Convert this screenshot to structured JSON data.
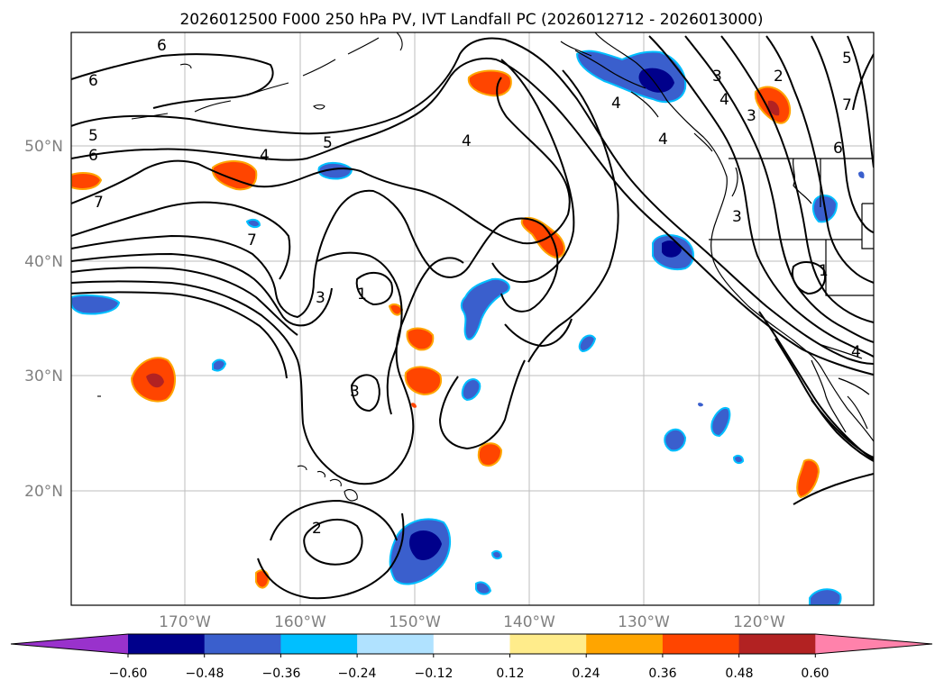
{
  "title": "2026012500 F000 250 hPa PV, IVT Landfall PC (2026012712 - 2026013000)",
  "map": {
    "lon_ticks": [
      "170°W",
      "160°W",
      "150°W",
      "140°W",
      "130°W",
      "120°W"
    ],
    "lat_ticks": [
      "50°N",
      "40°N",
      "30°N",
      "20°N"
    ],
    "contour_labels": [
      "6",
      "6",
      "5",
      "6",
      "5",
      "4",
      "4",
      "7",
      "7",
      "3",
      "1",
      "3",
      "2",
      "4",
      "2",
      "3",
      "3",
      "4",
      "7",
      "6",
      "5",
      "4",
      "3",
      "1",
      "4"
    ]
  },
  "colorbar": {
    "ticks": [
      "−0.60",
      "−0.48",
      "−0.36",
      "−0.24",
      "−0.12",
      "0.12",
      "0.24",
      "0.36",
      "0.48",
      "0.60"
    ],
    "colors": [
      "#9932cc",
      "#00008b",
      "#3a5fcd",
      "#00bfff",
      "#b0e2ff",
      "#ffffff",
      "#ffec8b",
      "#ffa500",
      "#ff4500",
      "#b22222",
      "#ff82ab"
    ]
  }
}
